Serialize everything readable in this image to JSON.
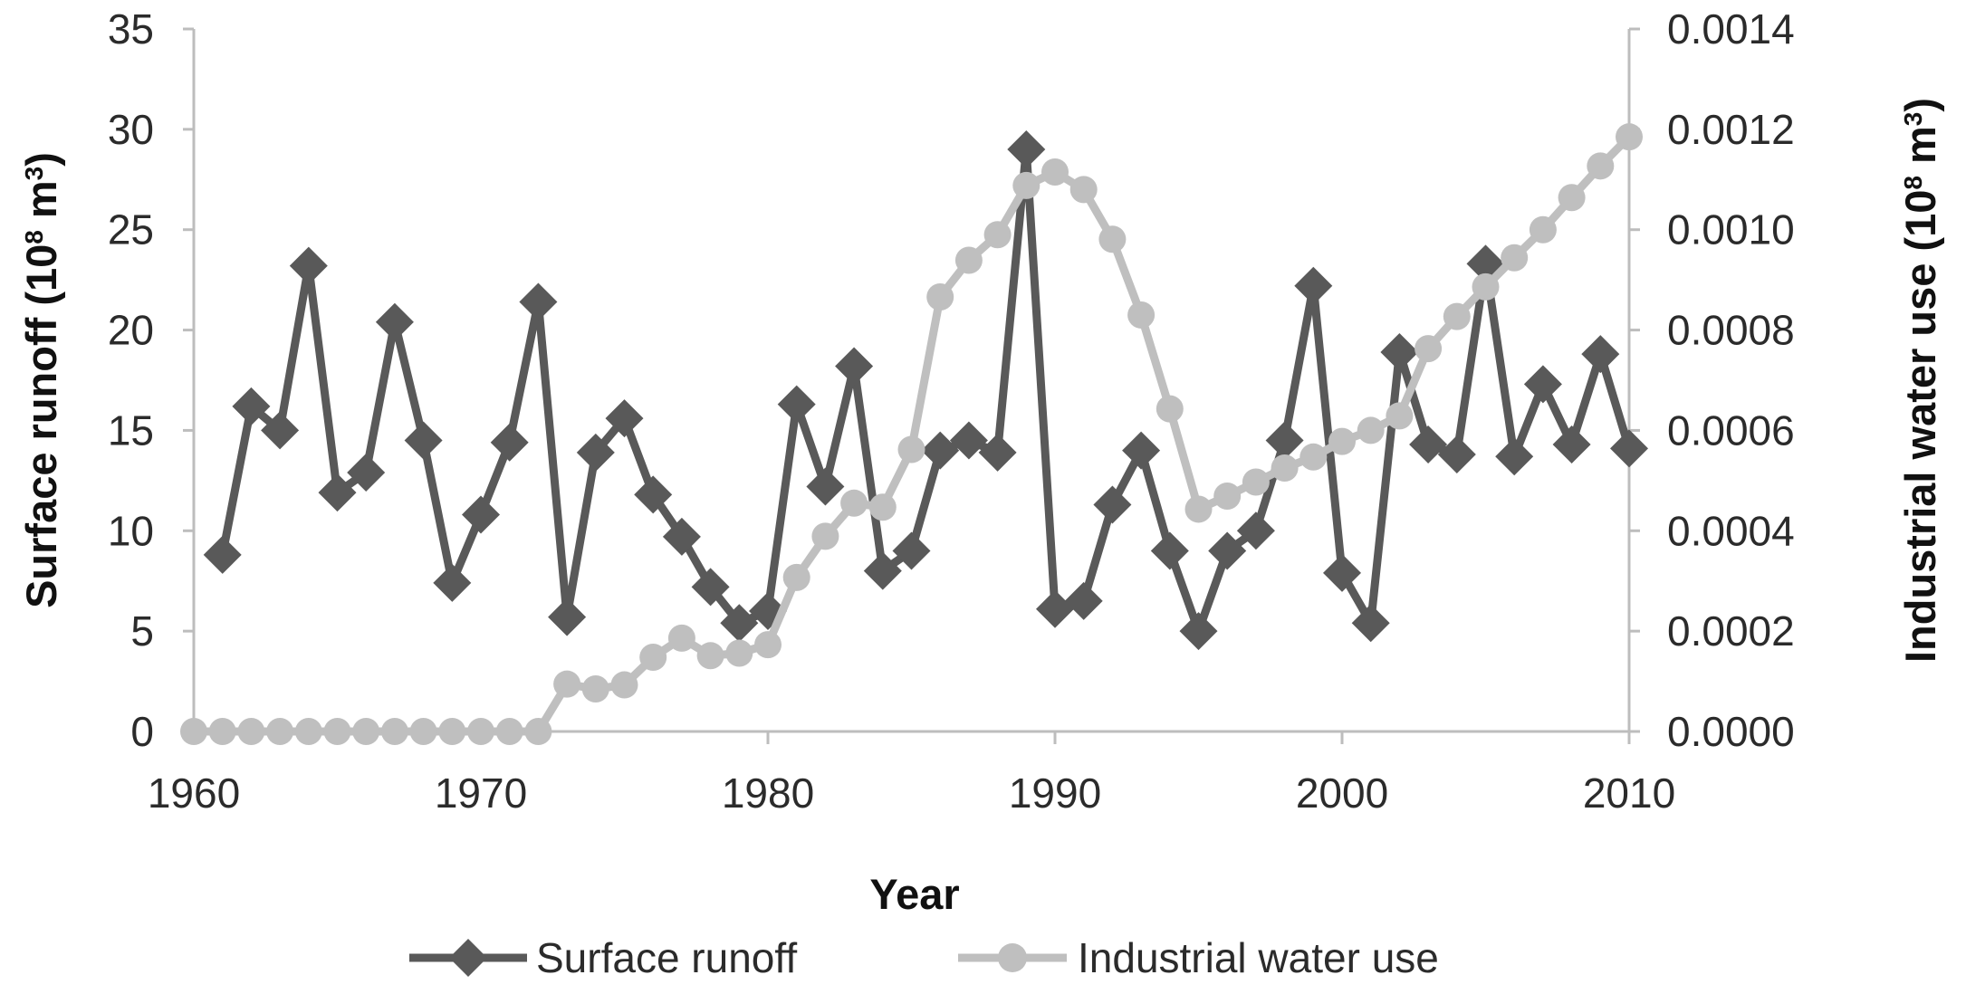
{
  "chart_data": {
    "type": "line",
    "title": "",
    "xlabel": "Year",
    "ylabel_left": {
      "prefix": "Surface runoff (10",
      "sup": "8",
      "mid": " m",
      "sup2": "3",
      "suffix": ")"
    },
    "ylabel_right": {
      "prefix": "Industrial water use (10",
      "sup": "8",
      "mid": " m",
      "sup2": "3",
      "suffix": ")"
    },
    "xlim": [
      1960,
      2010
    ],
    "ylim_left": [
      0,
      35
    ],
    "ylim_right": [
      0,
      0.0014
    ],
    "x_ticks": [
      "1960",
      "1970",
      "1980",
      "1990",
      "2000",
      "2010"
    ],
    "y_ticks_left": [
      "0",
      "5",
      "10",
      "15",
      "20",
      "25",
      "30",
      "35"
    ],
    "y_ticks_right": [
      "0.0000",
      "0.0002",
      "0.0004",
      "0.0006",
      "0.0008",
      "0.0010",
      "0.0012",
      "0.0014"
    ],
    "legend_position": "bottom",
    "x": [
      1961,
      1962,
      1963,
      1964,
      1965,
      1966,
      1967,
      1968,
      1969,
      1970,
      1971,
      1972,
      1973,
      1974,
      1975,
      1976,
      1977,
      1978,
      1979,
      1980,
      1981,
      1982,
      1983,
      1984,
      1985,
      1986,
      1987,
      1988,
      1989,
      1990,
      1991,
      1992,
      1993,
      1994,
      1995,
      1996,
      1997,
      1998,
      1999,
      2000,
      2001,
      2002,
      2003,
      2004,
      2005,
      2006,
      2007,
      2008,
      2009,
      2010
    ],
    "series": [
      {
        "name": "Surface runoff",
        "axis": "left",
        "marker": "diamond",
        "color": "#595959",
        "x": [
          1961,
          1962,
          1963,
          1964,
          1965,
          1966,
          1967,
          1968,
          1969,
          1970,
          1971,
          1972,
          1973,
          1974,
          1975,
          1976,
          1977,
          1978,
          1979,
          1980,
          1981,
          1982,
          1983,
          1984,
          1985,
          1986,
          1987,
          1988,
          1989,
          1990,
          1991,
          1992,
          1993,
          1994,
          1995,
          1996,
          1997,
          1998,
          1999,
          2000,
          2001,
          2002,
          2003,
          2004,
          2005,
          2006,
          2007,
          2008,
          2009,
          2010
        ],
        "values": [
          8.8,
          16.2,
          15.0,
          23.2,
          11.9,
          12.9,
          20.4,
          14.5,
          7.4,
          10.8,
          14.4,
          21.4,
          5.7,
          13.9,
          15.6,
          11.8,
          9.7,
          7.2,
          5.4,
          6.0,
          16.3,
          12.2,
          18.2,
          8.0,
          9.0,
          14.0,
          14.5,
          13.9,
          29.0,
          6.1,
          6.5,
          11.3,
          14.0,
          9.0,
          5.0,
          9.0,
          10.0,
          14.5,
          22.2,
          7.9,
          5.4,
          18.9,
          14.3,
          13.8,
          23.3,
          13.7,
          17.3,
          14.3,
          18.8,
          14.1
        ]
      },
      {
        "name": "Industrial water use",
        "axis": "right",
        "marker": "circle",
        "color": "#bfbfbf",
        "x": [
          1960,
          1961,
          1962,
          1963,
          1964,
          1965,
          1966,
          1967,
          1968,
          1969,
          1970,
          1971,
          1972,
          1973,
          1974,
          1975,
          1976,
          1977,
          1978,
          1979,
          1980,
          1981,
          1982,
          1983,
          1984,
          1985,
          1986,
          1987,
          1988,
          1989,
          1990,
          1991,
          1992,
          1993,
          1994,
          1995,
          1996,
          1997,
          1998,
          1999,
          2000,
          2001,
          2002,
          2003,
          2004,
          2005,
          2006,
          2007,
          2008,
          2009,
          2010
        ],
        "values": [
          0,
          0,
          0,
          0,
          0,
          0,
          0,
          0,
          0,
          0,
          0,
          0,
          0,
          9.44e-05,
          8.48e-05,
          9.28e-05,
          0.000148,
          0.000186,
          0.000151,
          0.000156,
          0.000173,
          0.000307,
          0.000389,
          0.000455,
          0.000447,
          0.000562,
          0.000866,
          0.000939,
          0.00099,
          0.001088,
          0.001115,
          0.00108,
          0.000981,
          0.00083,
          0.000643,
          0.000443,
          0.000469,
          0.000497,
          0.000525,
          0.000547,
          0.000578,
          0.0006,
          0.000629,
          0.000763,
          0.000827,
          0.000886,
          0.000944,
          0.001,
          0.001064,
          0.001127,
          0.001185
        ]
      }
    ]
  }
}
